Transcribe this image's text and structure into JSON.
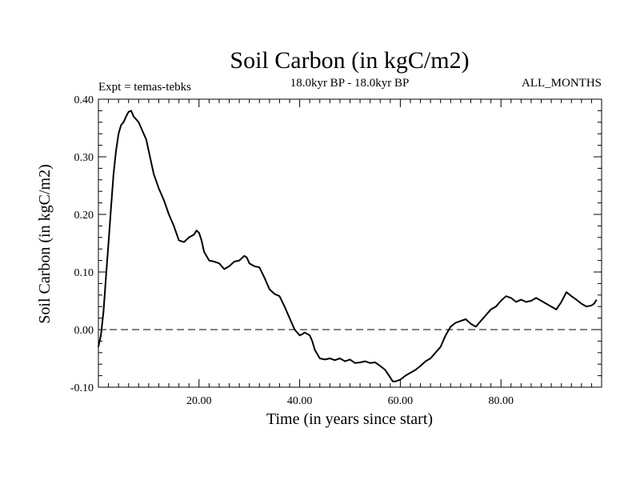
{
  "chart_data": {
    "type": "line",
    "title": "Soil Carbon (in kgC/m2)",
    "subtitle_left": "Expt = temas-tebks",
    "subtitle_center": "18.0kyr BP - 18.0kyr BP",
    "subtitle_right": "ALL_MONTHS",
    "xlabel": "Time (in years since start)",
    "ylabel": "Soil Carbon (in kgC/m2)",
    "xlim": [
      0,
      100
    ],
    "ylim": [
      -0.1,
      0.4
    ],
    "xticks": [
      20,
      40,
      60,
      80
    ],
    "xtick_labels": [
      "20.00",
      "40.00",
      "60.00",
      "80.00"
    ],
    "yticks": [
      -0.1,
      0.0,
      0.1,
      0.2,
      0.3,
      0.4
    ],
    "ytick_labels": [
      "-0.10",
      "0.00",
      "0.10",
      "0.20",
      "0.30",
      "0.40"
    ],
    "reference_line": {
      "y": 0.0,
      "style": "dashed"
    },
    "line_color": "#000000",
    "series": [
      {
        "name": "Soil Carbon",
        "x": [
          0,
          0.5,
          1,
          1.5,
          2,
          2.5,
          3,
          3.5,
          4,
          4.5,
          5,
          5.5,
          6,
          6.5,
          7,
          7.5,
          8,
          8.5,
          9,
          9.5,
          10,
          11,
          12,
          13,
          14,
          15,
          16,
          17,
          18,
          19,
          19.5,
          20,
          20.5,
          21,
          22,
          23,
          24,
          25,
          26,
          27,
          28,
          29,
          29.5,
          30,
          31,
          32,
          33,
          34,
          35,
          36,
          37,
          38,
          39,
          40,
          40.5,
          41,
          42,
          42.5,
          43,
          44,
          45,
          46,
          47,
          48,
          49,
          50,
          51,
          52,
          53,
          54,
          55,
          56,
          57,
          58,
          58.5,
          59,
          60,
          61,
          62,
          63,
          64,
          65,
          66,
          67,
          68,
          69,
          70,
          71,
          72,
          73,
          74,
          75,
          76,
          77,
          78,
          79,
          80,
          81,
          82,
          83,
          84,
          85,
          86,
          87,
          88,
          89,
          90,
          91,
          92,
          93,
          94,
          95,
          96,
          97,
          98,
          98.5,
          99
        ],
        "y": [
          -0.03,
          -0.01,
          0.03,
          0.09,
          0.15,
          0.21,
          0.27,
          0.31,
          0.34,
          0.355,
          0.36,
          0.37,
          0.378,
          0.38,
          0.37,
          0.365,
          0.36,
          0.35,
          0.34,
          0.33,
          0.31,
          0.27,
          0.245,
          0.225,
          0.2,
          0.18,
          0.155,
          0.152,
          0.16,
          0.165,
          0.172,
          0.168,
          0.155,
          0.135,
          0.12,
          0.118,
          0.115,
          0.105,
          0.11,
          0.118,
          0.12,
          0.128,
          0.125,
          0.115,
          0.11,
          0.108,
          0.09,
          0.07,
          0.062,
          0.058,
          0.04,
          0.02,
          0.0,
          -0.01,
          -0.008,
          -0.005,
          -0.01,
          -0.02,
          -0.035,
          -0.05,
          -0.052,
          -0.05,
          -0.053,
          -0.05,
          -0.055,
          -0.052,
          -0.058,
          -0.057,
          -0.055,
          -0.058,
          -0.057,
          -0.063,
          -0.07,
          -0.083,
          -0.09,
          -0.09,
          -0.087,
          -0.08,
          -0.075,
          -0.07,
          -0.063,
          -0.055,
          -0.05,
          -0.04,
          -0.03,
          -0.01,
          0.005,
          0.012,
          0.015,
          0.018,
          0.01,
          0.005,
          0.015,
          0.025,
          0.035,
          0.04,
          0.05,
          0.058,
          0.055,
          0.048,
          0.052,
          0.048,
          0.05,
          0.055,
          0.05,
          0.045,
          0.04,
          0.035,
          0.048,
          0.065,
          0.058,
          0.052,
          0.045,
          0.04,
          0.042,
          0.045,
          0.052
        ]
      }
    ]
  }
}
